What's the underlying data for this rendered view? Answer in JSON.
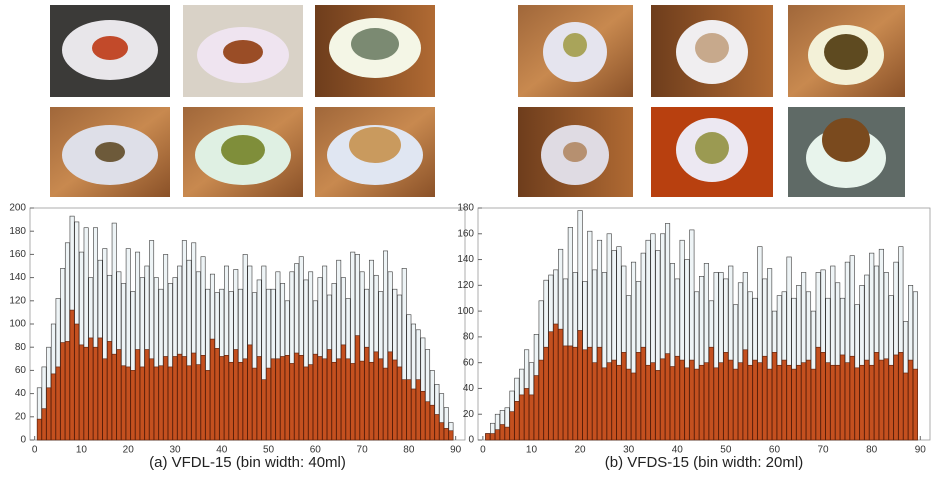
{
  "chart_data": [
    {
      "type": "bar",
      "caption": "(a) VFDL-15 (bin width: 40ml)",
      "x": [
        1,
        2,
        3,
        4,
        5,
        6,
        7,
        8,
        9,
        10,
        11,
        12,
        13,
        14,
        15,
        16,
        17,
        18,
        19,
        20,
        21,
        22,
        23,
        24,
        25,
        26,
        27,
        28,
        29,
        30,
        31,
        32,
        33,
        34,
        35,
        36,
        37,
        38,
        39,
        40,
        41,
        42,
        43,
        44,
        45,
        46,
        47,
        48,
        49,
        50,
        51,
        52,
        53,
        54,
        55,
        56,
        57,
        58,
        59,
        60,
        61,
        62,
        63,
        64,
        65,
        66,
        67,
        68,
        69,
        70,
        71,
        72,
        73,
        74,
        75,
        76,
        77,
        78,
        79,
        80,
        81,
        82,
        83,
        84,
        85,
        86,
        87,
        88,
        89
      ],
      "series": [
        {
          "color": "#eef4f6",
          "values": [
            45,
            63,
            80,
            100,
            122,
            148,
            170,
            193,
            188,
            162,
            183,
            140,
            183,
            155,
            165,
            142,
            187,
            145,
            135,
            165,
            128,
            162,
            140,
            150,
            172,
            140,
            130,
            160,
            135,
            140,
            150,
            172,
            155,
            170,
            145,
            158,
            130,
            143,
            127,
            130,
            150,
            128,
            147,
            130,
            160,
            150,
            127,
            138,
            150,
            130,
            130,
            145,
            135,
            120,
            145,
            152,
            158,
            138,
            145,
            120,
            140,
            150,
            125,
            135,
            155,
            140,
            122,
            162,
            160,
            145,
            130,
            155,
            142,
            128,
            163,
            145,
            130,
            125,
            148,
            108,
            100,
            95,
            88,
            78,
            60,
            48,
            40,
            28,
            15
          ]
        },
        {
          "color": "#c4501f",
          "values": [
            18,
            27,
            45,
            57,
            63,
            84,
            85,
            112,
            100,
            82,
            80,
            88,
            80,
            88,
            70,
            85,
            74,
            78,
            64,
            63,
            60,
            78,
            63,
            78,
            70,
            63,
            64,
            72,
            63,
            72,
            74,
            72,
            64,
            75,
            65,
            73,
            60,
            87,
            79,
            72,
            73,
            67,
            78,
            67,
            70,
            82,
            62,
            72,
            52,
            62,
            70,
            70,
            72,
            73,
            66,
            75,
            73,
            63,
            65,
            74,
            72,
            70,
            78,
            67,
            70,
            82,
            70,
            66,
            90,
            68,
            80,
            67,
            76,
            70,
            62,
            76,
            69,
            63,
            52,
            52,
            44,
            52,
            42,
            33,
            30,
            22,
            15,
            10,
            8
          ]
        }
      ],
      "xlim": [
        -1,
        92
      ],
      "xticks": [
        0,
        10,
        20,
        30,
        40,
        50,
        60,
        70,
        80,
        90
      ],
      "ylim": [
        0,
        200
      ],
      "yticks": [
        0,
        20,
        40,
        60,
        80,
        100,
        120,
        140,
        160,
        180,
        200
      ]
    },
    {
      "type": "bar",
      "caption": "(b) VFDS-15 (bin width: 20ml)",
      "x": [
        1,
        2,
        3,
        4,
        5,
        6,
        7,
        8,
        9,
        10,
        11,
        12,
        13,
        14,
        15,
        16,
        17,
        18,
        19,
        20,
        21,
        22,
        23,
        24,
        25,
        26,
        27,
        28,
        29,
        30,
        31,
        32,
        33,
        34,
        35,
        36,
        37,
        38,
        39,
        40,
        41,
        42,
        43,
        44,
        45,
        46,
        47,
        48,
        49,
        50,
        51,
        52,
        53,
        54,
        55,
        56,
        57,
        58,
        59,
        60,
        61,
        62,
        63,
        64,
        65,
        66,
        67,
        68,
        69,
        70,
        71,
        72,
        73,
        74,
        75,
        76,
        77,
        78,
        79,
        80,
        81,
        82,
        83,
        84,
        85,
        86,
        87,
        88,
        89
      ],
      "series": [
        {
          "color": "#eef4f6",
          "values": [
            5,
            13,
            20,
            23,
            25,
            38,
            48,
            55,
            70,
            60,
            82,
            108,
            124,
            128,
            132,
            148,
            125,
            165,
            130,
            178,
            123,
            162,
            132,
            155,
            130,
            160,
            147,
            150,
            135,
            112,
            138,
            123,
            145,
            155,
            160,
            147,
            160,
            168,
            137,
            125,
            155,
            140,
            163,
            115,
            127,
            137,
            108,
            130,
            130,
            125,
            135,
            105,
            122,
            130,
            115,
            110,
            150,
            125,
            133,
            100,
            112,
            115,
            142,
            110,
            120,
            130,
            115,
            100,
            130,
            132,
            110,
            135,
            122,
            110,
            138,
            143,
            105,
            120,
            128,
            145,
            135,
            148,
            130,
            112,
            138,
            150,
            92,
            120,
            115
          ]
        },
        {
          "color": "#c4501f",
          "values": [
            5,
            5,
            8,
            12,
            10,
            22,
            30,
            35,
            40,
            35,
            50,
            62,
            72,
            84,
            90,
            86,
            73,
            73,
            72,
            85,
            70,
            72,
            60,
            72,
            56,
            60,
            62,
            58,
            68,
            55,
            52,
            68,
            72,
            58,
            60,
            54,
            63,
            67,
            57,
            65,
            62,
            56,
            62,
            55,
            58,
            60,
            72,
            56,
            60,
            68,
            62,
            55,
            60,
            70,
            58,
            62,
            60,
            65,
            55,
            68,
            58,
            62,
            58,
            55,
            58,
            60,
            62,
            55,
            72,
            68,
            60,
            58,
            58,
            66,
            60,
            65,
            56,
            58,
            62,
            58,
            68,
            62,
            63,
            58,
            66,
            68,
            52,
            62,
            55
          ]
        }
      ],
      "xlim": [
        -1,
        92
      ],
      "xticks": [
        0,
        10,
        20,
        30,
        40,
        50,
        60,
        70,
        80,
        90
      ],
      "ylim": [
        0,
        180
      ],
      "yticks": [
        0,
        20,
        40,
        60,
        80,
        100,
        120,
        140,
        160,
        180
      ]
    }
  ]
}
